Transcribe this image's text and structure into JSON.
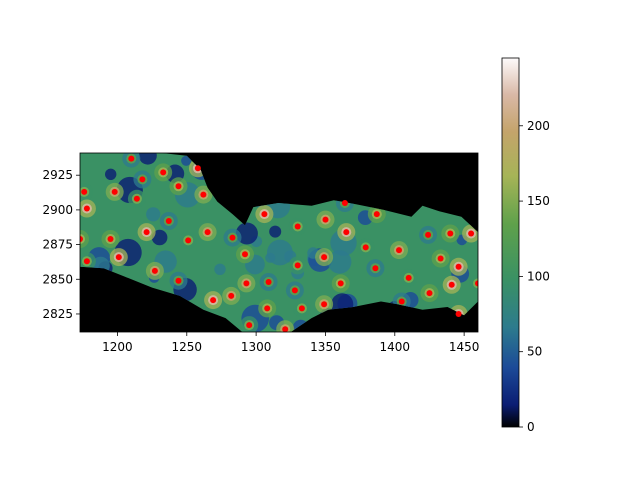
{
  "chart_data": {
    "type": "heatmap",
    "title": "",
    "xlabel": "",
    "ylabel": "",
    "xlim": [
      1173,
      1460
    ],
    "ylim": [
      2812,
      2941
    ],
    "x_ticks": [
      "1200",
      "1250",
      "1300",
      "1350",
      "1400",
      "1450"
    ],
    "y_ticks": [
      "2825",
      "2850",
      "2875",
      "2900",
      "2925"
    ],
    "colormap": "gist_earth",
    "masked_color": "#000000",
    "colorbar": {
      "range": [
        0,
        245
      ],
      "ticks": [
        "0",
        "50",
        "100",
        "150",
        "200"
      ]
    },
    "point_color": "#ff0000",
    "points": [
      {
        "x": 1210,
        "y": 2937
      },
      {
        "x": 1233,
        "y": 2927
      },
      {
        "x": 1258,
        "y": 2930
      },
      {
        "x": 1176,
        "y": 2913
      },
      {
        "x": 1198,
        "y": 2913
      },
      {
        "x": 1218,
        "y": 2922
      },
      {
        "x": 1244,
        "y": 2917
      },
      {
        "x": 1178,
        "y": 2901
      },
      {
        "x": 1214,
        "y": 2908
      },
      {
        "x": 1262,
        "y": 2911
      },
      {
        "x": 1237,
        "y": 2892
      },
      {
        "x": 1195,
        "y": 2879
      },
      {
        "x": 1221,
        "y": 2884
      },
      {
        "x": 1251,
        "y": 2878
      },
      {
        "x": 1265,
        "y": 2884
      },
      {
        "x": 1283,
        "y": 2880
      },
      {
        "x": 1173,
        "y": 2879
      },
      {
        "x": 1201,
        "y": 2866
      },
      {
        "x": 1178,
        "y": 2863
      },
      {
        "x": 1227,
        "y": 2856
      },
      {
        "x": 1244,
        "y": 2849
      },
      {
        "x": 1292,
        "y": 2868
      },
      {
        "x": 1306,
        "y": 2897
      },
      {
        "x": 1330,
        "y": 2888
      },
      {
        "x": 1350,
        "y": 2893
      },
      {
        "x": 1364,
        "y": 2905
      },
      {
        "x": 1387,
        "y": 2897
      },
      {
        "x": 1365,
        "y": 2884
      },
      {
        "x": 1379,
        "y": 2873
      },
      {
        "x": 1403,
        "y": 2871
      },
      {
        "x": 1424,
        "y": 2882
      },
      {
        "x": 1440,
        "y": 2883
      },
      {
        "x": 1455,
        "y": 2883
      },
      {
        "x": 1330,
        "y": 2860
      },
      {
        "x": 1349,
        "y": 2866
      },
      {
        "x": 1386,
        "y": 2858
      },
      {
        "x": 1433,
        "y": 2865
      },
      {
        "x": 1446,
        "y": 2859
      },
      {
        "x": 1410,
        "y": 2851
      },
      {
        "x": 1293,
        "y": 2847
      },
      {
        "x": 1309,
        "y": 2848
      },
      {
        "x": 1361,
        "y": 2847
      },
      {
        "x": 1441,
        "y": 2846
      },
      {
        "x": 1460,
        "y": 2847
      },
      {
        "x": 1282,
        "y": 2838
      },
      {
        "x": 1328,
        "y": 2842
      },
      {
        "x": 1425,
        "y": 2840
      },
      {
        "x": 1269,
        "y": 2835
      },
      {
        "x": 1333,
        "y": 2829
      },
      {
        "x": 1349,
        "y": 2832
      },
      {
        "x": 1405,
        "y": 2834
      },
      {
        "x": 1308,
        "y": 2829
      },
      {
        "x": 1446,
        "y": 2825
      },
      {
        "x": 1295,
        "y": 2817
      },
      {
        "x": 1321,
        "y": 2814
      }
    ]
  }
}
